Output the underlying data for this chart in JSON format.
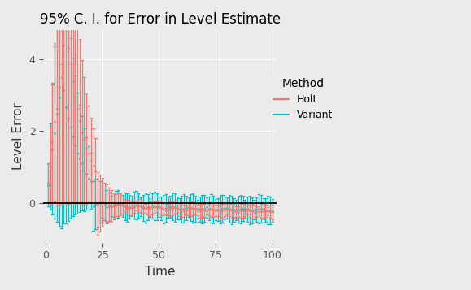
{
  "title": "95% C. I. for Error in Level Estimate",
  "xlabel": "Time",
  "ylabel": "Level Error",
  "legend_title": "Method",
  "legend_labels": [
    "Holt",
    "Variant"
  ],
  "holt_color": "#F8766D",
  "variant_color": "#00BFC4",
  "bg_color": "#EBEBEB",
  "panel_bg": "#EBEBEB",
  "grid_color": "white",
  "hline_color": "black",
  "ylim": [
    -1.1,
    4.8
  ],
  "xlim": [
    -1,
    102
  ],
  "yticks": [
    0,
    2,
    4
  ],
  "xticks": [
    0,
    25,
    50,
    75,
    100
  ],
  "figsize": [
    5.79,
    3.57
  ],
  "dpi": 100
}
